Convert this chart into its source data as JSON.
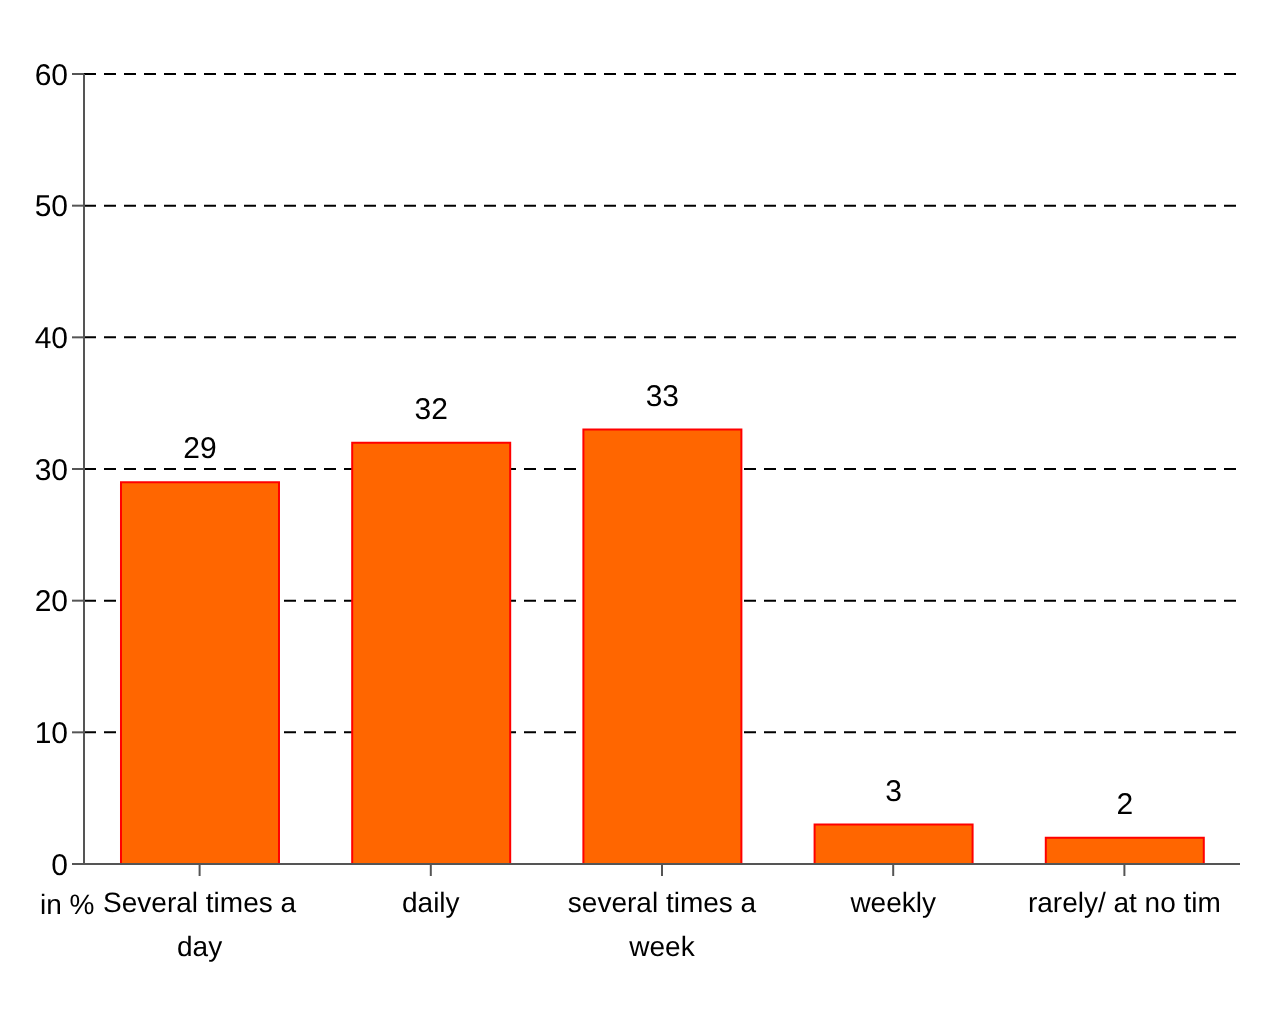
{
  "chart_data": {
    "type": "bar",
    "ylabel": "in %",
    "categories": [
      "Several times a day",
      "daily",
      "several times a week",
      "weekly",
      "rarely/ at no tim"
    ],
    "values": [
      29,
      32,
      33,
      3,
      2
    ],
    "color": "#ff6600",
    "ylim": [
      0,
      60
    ],
    "yticks": [
      0,
      10,
      20,
      30,
      40,
      50,
      60
    ],
    "grid": "y",
    "data_labels": true
  }
}
